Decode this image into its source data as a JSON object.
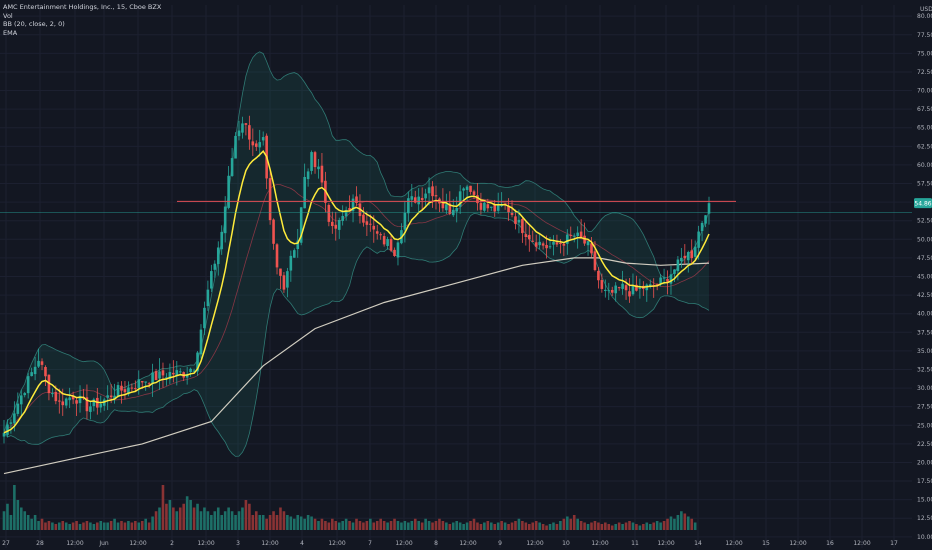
{
  "legend": {
    "title": "AMC Entertainment Holdings, Inc., 15, Cboe BZX",
    "vol": "Vol",
    "bb": "BB (20, close, 2, 0)",
    "ema": "EMA"
  },
  "colors": {
    "background": "#131722",
    "up": "#26a69a",
    "down": "#ef5350",
    "vol_up": "#1d6f67",
    "vol_down": "#8a3334",
    "ema": "#ffeb3b",
    "sma_long": "#d1cdc0",
    "bb_band": "#2f7a74",
    "bb_basis": "#a1394a",
    "resistance": "#e04e55",
    "price_line": "#26a69a"
  },
  "chart_data": {
    "type": "candlestick",
    "currency": "USD",
    "y_ticks": [
      "80.00",
      "77.50",
      "75.00",
      "72.50",
      "70.00",
      "67.50",
      "65.00",
      "62.50",
      "60.00",
      "57.50",
      "55.00",
      "52.50",
      "50.00",
      "47.50",
      "45.00",
      "42.50",
      "40.00",
      "37.50",
      "35.00",
      "32.50",
      "30.00",
      "27.50",
      "25.00",
      "22.50",
      "20.00",
      "17.50",
      "15.00",
      "12.50",
      "10.00"
    ],
    "x_ticks": [
      "27",
      "28",
      "12:00",
      "Jun",
      "12:00",
      "2",
      "12:00",
      "3",
      "12:00",
      "4",
      "12:00",
      "7",
      "12:00",
      "8",
      "12:00",
      "9",
      "12:00",
      "10",
      "12:00",
      "11",
      "12:00",
      "14",
      "12:00",
      "15",
      "12:00",
      "16",
      "12:00",
      "17"
    ],
    "ylim": [
      8.5,
      81.5
    ],
    "resistance_level": 55.1,
    "last_price": "54.86",
    "last_price_value": 54.86,
    "price_line_value": 53.6,
    "anchors": [
      {
        "t": 0,
        "p": 24
      },
      {
        "t": 3,
        "p": 27
      },
      {
        "t": 6,
        "p": 30
      },
      {
        "t": 8,
        "p": 32
      },
      {
        "t": 10,
        "p": 34
      },
      {
        "t": 13,
        "p": 30
      },
      {
        "t": 16,
        "p": 28
      },
      {
        "t": 20,
        "p": 29
      },
      {
        "t": 24,
        "p": 27.5
      },
      {
        "t": 28,
        "p": 28
      },
      {
        "t": 32,
        "p": 29.5
      },
      {
        "t": 36,
        "p": 30
      },
      {
        "t": 40,
        "p": 31
      },
      {
        "t": 44,
        "p": 31.5
      },
      {
        "t": 48,
        "p": 32
      },
      {
        "t": 52,
        "p": 32
      },
      {
        "t": 55,
        "p": 33
      },
      {
        "t": 57,
        "p": 38
      },
      {
        "t": 59,
        "p": 43
      },
      {
        "t": 61,
        "p": 47
      },
      {
        "t": 63,
        "p": 51
      },
      {
        "t": 65,
        "p": 58
      },
      {
        "t": 67,
        "p": 64
      },
      {
        "t": 69,
        "p": 66
      },
      {
        "t": 71,
        "p": 64
      },
      {
        "t": 73,
        "p": 62
      },
      {
        "t": 75,
        "p": 63
      },
      {
        "t": 77,
        "p": 52
      },
      {
        "t": 79,
        "p": 46
      },
      {
        "t": 81,
        "p": 44
      },
      {
        "t": 83,
        "p": 48
      },
      {
        "t": 85,
        "p": 50
      },
      {
        "t": 87,
        "p": 58
      },
      {
        "t": 89,
        "p": 61
      },
      {
        "t": 91,
        "p": 60
      },
      {
        "t": 93,
        "p": 55
      },
      {
        "t": 95,
        "p": 51
      },
      {
        "t": 97,
        "p": 52
      },
      {
        "t": 99,
        "p": 54
      },
      {
        "t": 101,
        "p": 55
      },
      {
        "t": 103,
        "p": 53.5
      },
      {
        "t": 105,
        "p": 52.5
      },
      {
        "t": 107,
        "p": 51
      },
      {
        "t": 109,
        "p": 50
      },
      {
        "t": 111,
        "p": 49.5
      },
      {
        "t": 113,
        "p": 48.5
      },
      {
        "t": 115,
        "p": 52
      },
      {
        "t": 117,
        "p": 55
      },
      {
        "t": 119,
        "p": 55.5
      },
      {
        "t": 121,
        "p": 56
      },
      {
        "t": 123,
        "p": 57
      },
      {
        "t": 125,
        "p": 56
      },
      {
        "t": 127,
        "p": 54.5
      },
      {
        "t": 129,
        "p": 54
      },
      {
        "t": 131,
        "p": 55
      },
      {
        "t": 133,
        "p": 57.5
      },
      {
        "t": 135,
        "p": 57
      },
      {
        "t": 137,
        "p": 55
      },
      {
        "t": 139,
        "p": 54.5
      },
      {
        "t": 141,
        "p": 54
      },
      {
        "t": 143,
        "p": 54
      },
      {
        "t": 145,
        "p": 54.5
      },
      {
        "t": 147,
        "p": 53.5
      },
      {
        "t": 149,
        "p": 52
      },
      {
        "t": 151,
        "p": 51
      },
      {
        "t": 153,
        "p": 50
      },
      {
        "t": 155,
        "p": 49.5
      },
      {
        "t": 157,
        "p": 49
      },
      {
        "t": 159,
        "p": 49
      },
      {
        "t": 161,
        "p": 49.5
      },
      {
        "t": 163,
        "p": 50
      },
      {
        "t": 165,
        "p": 50.5
      },
      {
        "t": 167,
        "p": 50
      },
      {
        "t": 169,
        "p": 49
      },
      {
        "t": 171,
        "p": 46
      },
      {
        "t": 173,
        "p": 43
      },
      {
        "t": 175,
        "p": 42.5
      },
      {
        "t": 177,
        "p": 43
      },
      {
        "t": 179,
        "p": 43.5
      },
      {
        "t": 181,
        "p": 43
      },
      {
        "t": 183,
        "p": 43
      },
      {
        "t": 185,
        "p": 43.5
      },
      {
        "t": 187,
        "p": 43.5
      },
      {
        "t": 189,
        "p": 44
      },
      {
        "t": 191,
        "p": 44.5
      },
      {
        "t": 193,
        "p": 45.5
      },
      {
        "t": 195,
        "p": 46.5
      },
      {
        "t": 197,
        "p": 48
      },
      {
        "t": 199,
        "p": 48
      },
      {
        "t": 201,
        "p": 51
      },
      {
        "t": 203,
        "p": 54
      },
      {
        "t": 204,
        "p": 54.86
      }
    ],
    "sma_long_points": [
      [
        0,
        18.5
      ],
      [
        20,
        20.5
      ],
      [
        40,
        22.5
      ],
      [
        60,
        25.5
      ],
      [
        75,
        33
      ],
      [
        90,
        38
      ],
      [
        110,
        41.5
      ],
      [
        130,
        44
      ],
      [
        150,
        46.5
      ],
      [
        165,
        47.5
      ],
      [
        172,
        47.5
      ],
      [
        180,
        46.8
      ],
      [
        190,
        46.5
      ],
      [
        204,
        46.8
      ]
    ],
    "volume_heights": [
      0.25,
      0.35,
      0.2,
      0.6,
      0.4,
      0.3,
      0.25,
      0.2,
      0.15,
      0.2,
      0.12,
      0.15,
      0.1,
      0.12,
      0.1,
      0.08,
      0.1,
      0.12,
      0.1,
      0.08,
      0.1,
      0.12,
      0.08,
      0.1,
      0.12,
      0.1,
      0.08,
      0.1,
      0.12,
      0.1,
      0.1,
      0.12,
      0.15,
      0.1,
      0.12,
      0.1,
      0.12,
      0.1,
      0.12,
      0.1,
      0.12,
      0.15,
      0.1,
      0.18,
      0.25,
      0.3,
      0.6,
      0.35,
      0.4,
      0.3,
      0.25,
      0.3,
      0.35,
      0.45,
      0.4,
      0.3,
      0.35,
      0.25,
      0.3,
      0.25,
      0.2,
      0.25,
      0.3,
      0.2,
      0.25,
      0.3,
      0.25,
      0.2,
      0.25,
      0.3,
      0.4,
      0.35,
      0.2,
      0.25,
      0.2,
      0.2,
      0.15,
      0.2,
      0.25,
      0.2,
      0.3,
      0.25,
      0.2,
      0.18,
      0.15,
      0.2,
      0.18,
      0.15,
      0.2,
      0.18,
      0.15,
      0.12,
      0.15,
      0.12,
      0.1,
      0.15,
      0.12,
      0.1,
      0.12,
      0.15,
      0.12,
      0.1,
      0.15,
      0.12,
      0.1,
      0.12,
      0.15,
      0.1,
      0.12,
      0.15,
      0.12,
      0.1,
      0.12,
      0.15,
      0.12,
      0.1,
      0.12,
      0.1,
      0.12,
      0.15,
      0.12,
      0.1,
      0.15,
      0.12,
      0.1,
      0.12,
      0.15,
      0.12,
      0.1,
      0.08,
      0.1,
      0.12,
      0.1,
      0.08,
      0.1,
      0.12,
      0.15,
      0.1,
      0.08,
      0.1,
      0.12,
      0.1,
      0.08,
      0.1,
      0.12,
      0.1,
      0.08,
      0.1,
      0.12,
      0.15,
      0.12,
      0.1,
      0.08,
      0.1,
      0.12,
      0.1,
      0.08,
      0.06,
      0.08,
      0.1,
      0.08,
      0.12,
      0.15,
      0.18,
      0.15,
      0.2,
      0.15,
      0.12,
      0.1,
      0.08,
      0.1,
      0.12,
      0.1,
      0.08,
      0.1,
      0.08,
      0.06,
      0.08,
      0.1,
      0.08,
      0.1,
      0.12,
      0.1,
      0.08,
      0.06,
      0.08,
      0.1,
      0.08,
      0.1,
      0.12,
      0.1,
      0.12,
      0.15,
      0.18,
      0.15,
      0.2,
      0.25,
      0.22,
      0.18,
      0.15,
      0.1
    ]
  }
}
